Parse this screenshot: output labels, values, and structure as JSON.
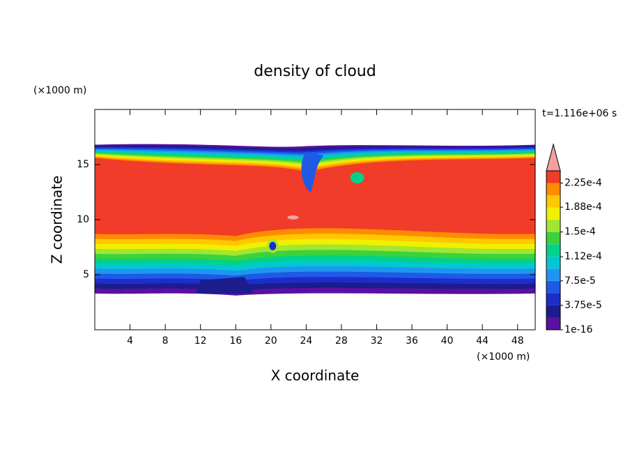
{
  "chart_data": {
    "type": "contour",
    "title": "density of cloud",
    "x_label": "X coordinate",
    "y_label": "Z coordinate",
    "x_unit": "(×1000 m)",
    "y_unit": "(×1000 m)",
    "annotation": "t=1.116e+06 s",
    "xlim": [
      0,
      50
    ],
    "ylim": [
      0,
      20
    ],
    "xticks": [
      4,
      8,
      12,
      16,
      20,
      24,
      28,
      32,
      36,
      40,
      44,
      48
    ],
    "yticks": [
      5,
      10,
      15
    ],
    "colorbar": {
      "clim": [
        1e-16,
        0.00024375
      ],
      "colors": [
        "#5a10a0",
        "#1c1c8c",
        "#1e2ccc",
        "#1e5ae6",
        "#1e96f0",
        "#00c8d2",
        "#00d28c",
        "#3cd23c",
        "#a0e632",
        "#f0f000",
        "#ffc800",
        "#ff8c00",
        "#f03c28"
      ],
      "extend_color": "#f4a0a0",
      "ticks": [
        {
          "value": 1e-16,
          "label": "1e-16"
        },
        {
          "value": 3.75e-05,
          "label": "3.75e-5"
        },
        {
          "value": 7.5e-05,
          "label": "7.5e-5"
        },
        {
          "value": 0.000112,
          "label": "1.12e-4"
        },
        {
          "value": 0.00015,
          "label": "1.5e-4"
        },
        {
          "value": 0.000188,
          "label": "1.88e-4"
        },
        {
          "value": 0.000225,
          "label": "2.25e-4"
        }
      ]
    }
  }
}
